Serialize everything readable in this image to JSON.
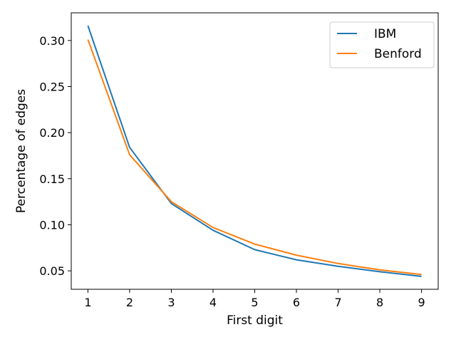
{
  "chart_data": {
    "type": "line",
    "title": "",
    "xlabel": "First digit",
    "ylabel": "Percentage of edges",
    "x": [
      1,
      2,
      3,
      4,
      5,
      6,
      7,
      8,
      9
    ],
    "xlim": [
      0.6,
      9.4
    ],
    "ylim": [
      0.03,
      0.33
    ],
    "xticks": [
      "1",
      "2",
      "3",
      "4",
      "5",
      "6",
      "7",
      "8",
      "9"
    ],
    "yticks": [
      "0.05",
      "0.10",
      "0.15",
      "0.20",
      "0.25",
      "0.30"
    ],
    "ytick_values": [
      0.05,
      0.1,
      0.15,
      0.2,
      0.25,
      0.3
    ],
    "grid": false,
    "legend_position": "top-right",
    "series": [
      {
        "name": "IBM",
        "color": "#1f77b4",
        "values": [
          0.316,
          0.184,
          0.123,
          0.094,
          0.073,
          0.062,
          0.055,
          0.049,
          0.044
        ]
      },
      {
        "name": "Benford",
        "color": "#ff7f0e",
        "values": [
          0.301,
          0.176,
          0.125,
          0.097,
          0.079,
          0.067,
          0.058,
          0.051,
          0.046
        ]
      }
    ]
  }
}
